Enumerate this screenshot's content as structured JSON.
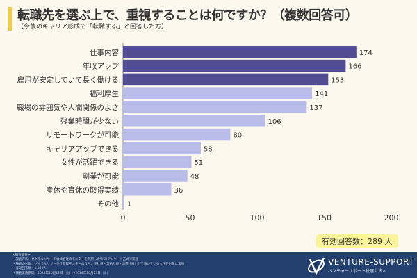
{
  "header": {
    "title": "転職先を選ぶ上で、重視することは何ですか？（複数回答可）",
    "subtitle": "【今後のキャリア形成で「転職する」と回答した方】"
  },
  "chart_data": {
    "type": "bar",
    "orientation": "horizontal",
    "categories": [
      "仕事内容",
      "年収アップ",
      "雇用が安定していて長く働ける",
      "福利厚生",
      "職場の雰囲気や人間関係のよさ",
      "残業時間が少ない",
      "リモートワークが可能",
      "キャリアアップできる",
      "女性が活躍できる",
      "副業が可能",
      "産休や育休の取得実績",
      "その他"
    ],
    "values": [
      174,
      166,
      153,
      141,
      137,
      106,
      80,
      58,
      51,
      48,
      36,
      1
    ],
    "xlim": [
      0,
      200
    ],
    "xticks": [
      0,
      50,
      100,
      150,
      200
    ],
    "highlight_count": 3,
    "colors": {
      "highlight": "#524c93",
      "normal": "#b9bbe8"
    },
    "grid": false
  },
  "total_label": "有効回答数：289 人",
  "footer": {
    "notes": [
      "<調査概要>",
      "・調査方法：ゼネラルリサーチ株式会社のモニターを利用したWEBアンケート方式で実施",
      "・調査の対象：ゼネラルリサーチ社登録モニターのうち、正社員・契約社員・派遣社員として働いている女性を対象に実施",
      "・有効回答数：1,033人",
      "・調査実施期間：2024年10月22日（火）～2024年10月23日（水）"
    ],
    "logo_main": "VENTURE-SUPPORT",
    "logo_sub": "ベンチャーサポート税理士法人"
  }
}
